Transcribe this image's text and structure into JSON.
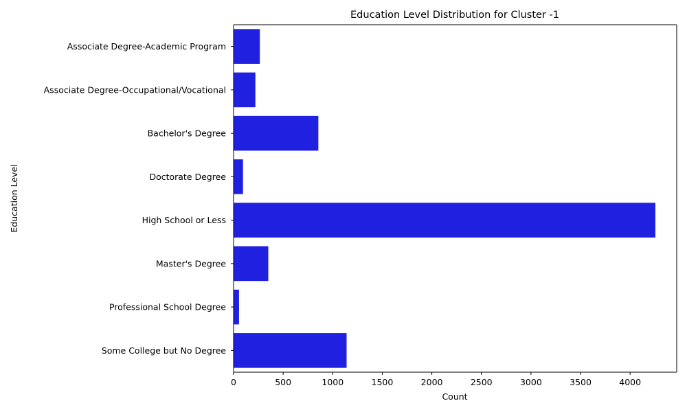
{
  "chart_data": {
    "type": "bar",
    "orientation": "horizontal",
    "title": "Education Level Distribution for Cluster -1",
    "xlabel": "Count",
    "ylabel": "Education Level",
    "categories": [
      "Associate Degree-Academic Program",
      "Associate Degree-Occupational/Vocational",
      "Bachelor's Degree",
      "Doctorate Degree",
      "High School or Less",
      "Master's Degree",
      "Professional School Degree",
      "Some College but No Degree"
    ],
    "values": [
      265,
      220,
      855,
      95,
      4255,
      350,
      55,
      1140
    ],
    "xlim": [
      0,
      4470
    ],
    "xticks": [
      0,
      500,
      1000,
      1500,
      2000,
      2500,
      3000,
      3500,
      4000
    ],
    "grid": false,
    "bar_color": "#2020E0"
  }
}
